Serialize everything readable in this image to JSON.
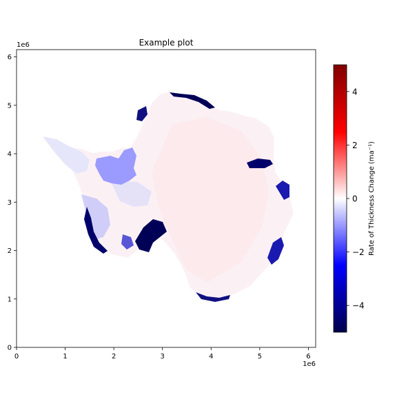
{
  "chart_data": {
    "type": "heatmap",
    "title": "Example plot",
    "xlabel": "",
    "ylabel": "",
    "x_offset_label": "1e6",
    "y_offset_label": "1e6",
    "xlim": [
      0,
      6.15
    ],
    "ylim": [
      0,
      6.15
    ],
    "x_ticks": [
      0,
      1,
      2,
      3,
      4,
      5,
      6
    ],
    "y_ticks": [
      0,
      1,
      2,
      3,
      4,
      5,
      6
    ],
    "x_tick_labels": [
      "0",
      "1",
      "2",
      "3",
      "4",
      "5",
      "6"
    ],
    "y_tick_labels": [
      "0",
      "1",
      "2",
      "3",
      "4",
      "5",
      "6"
    ],
    "colorbar": {
      "label": "Rate of Thickness Change (ma⁻¹)",
      "range": [
        -5,
        5
      ],
      "ticks": [
        -4,
        -2,
        0,
        2,
        4
      ],
      "tick_labels": [
        "−4",
        "−2",
        "0",
        "2",
        "4"
      ],
      "colormap": "seismic",
      "colors": [
        "#00004c",
        "#0000ff",
        "#ffffff",
        "#ff0000",
        "#800000"
      ]
    },
    "colors": {
      "ice_sheet_fill": "#fbf1f4",
      "masked_shelf": "#9a9aff",
      "thinning": "#000057"
    }
  }
}
